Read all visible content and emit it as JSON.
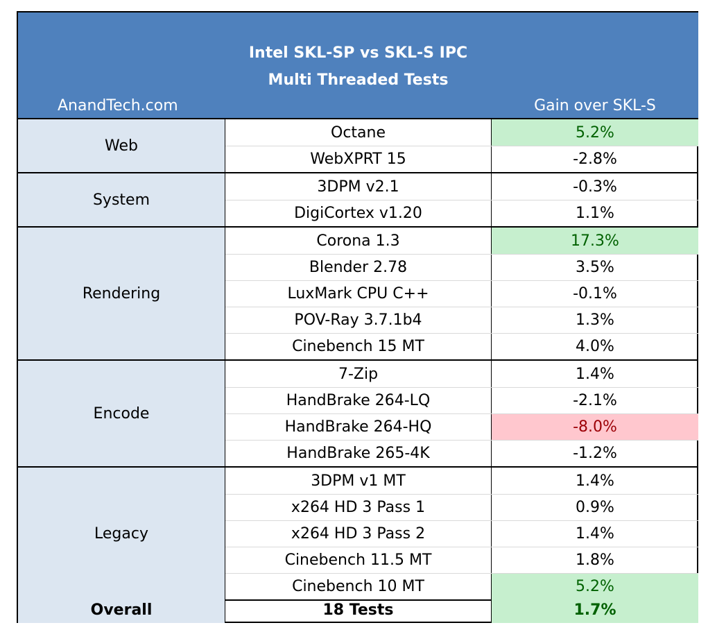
{
  "chart_data": {
    "type": "table",
    "title": "Intel SKL-SP vs SKL-S IPC",
    "subtitle": "Multi Threaded Tests",
    "source": "AnandTech.com",
    "value_header": "Gain over SKL-S",
    "groups": [
      {
        "name": "Web",
        "rows": [
          {
            "test": "Octane",
            "value": "5.2%",
            "highlight": "positive"
          },
          {
            "test": "WebXPRT 15",
            "value": "-2.8%",
            "highlight": "none"
          }
        ]
      },
      {
        "name": "System",
        "rows": [
          {
            "test": "3DPM v2.1",
            "value": "-0.3%",
            "highlight": "none"
          },
          {
            "test": "DigiCortex v1.20",
            "value": "1.1%",
            "highlight": "none"
          }
        ]
      },
      {
        "name": "Rendering",
        "rows": [
          {
            "test": "Corona 1.3",
            "value": "17.3%",
            "highlight": "positive"
          },
          {
            "test": "Blender 2.78",
            "value": "3.5%",
            "highlight": "none"
          },
          {
            "test": "LuxMark CPU C++",
            "value": "-0.1%",
            "highlight": "none"
          },
          {
            "test": "POV-Ray 3.7.1b4",
            "value": "1.3%",
            "highlight": "none"
          },
          {
            "test": "Cinebench 15 MT",
            "value": "4.0%",
            "highlight": "none"
          }
        ]
      },
      {
        "name": "Encode",
        "rows": [
          {
            "test": "7-Zip",
            "value": "1.4%",
            "highlight": "none"
          },
          {
            "test": "HandBrake 264-LQ",
            "value": "-2.1%",
            "highlight": "none"
          },
          {
            "test": "HandBrake 264-HQ",
            "value": "-8.0%",
            "highlight": "negative"
          },
          {
            "test": "HandBrake 265-4K",
            "value": "-1.2%",
            "highlight": "none"
          }
        ]
      },
      {
        "name": "Legacy",
        "rows": [
          {
            "test": "3DPM v1 MT",
            "value": "1.4%",
            "highlight": "none"
          },
          {
            "test": "x264 HD 3 Pass 1",
            "value": "0.9%",
            "highlight": "none"
          },
          {
            "test": "x264 HD 3 Pass 2",
            "value": "1.4%",
            "highlight": "none"
          },
          {
            "test": "Cinebench 11.5 MT",
            "value": "1.8%",
            "highlight": "none"
          },
          {
            "test": "Cinebench 10 MT",
            "value": "5.2%",
            "highlight": "positive"
          }
        ]
      }
    ],
    "overall": {
      "label": "Overall",
      "tests": "18 Tests",
      "value": "1.7%",
      "highlight": "positive"
    }
  },
  "colors": {
    "header_bg": "#4f81bd",
    "group_bg": "#dce6f1",
    "positive_bg": "#c6efce",
    "positive_text": "#006100",
    "negative_bg": "#ffc7ce",
    "negative_text": "#9c0006"
  }
}
